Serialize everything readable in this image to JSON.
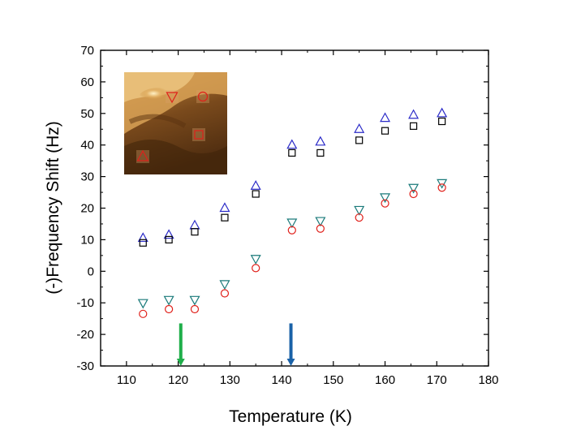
{
  "chart_data": {
    "type": "scatter",
    "title": "",
    "xlabel": "Temperature (K)",
    "ylabel": "(-)Frequency Shift (Hz)",
    "xlim": [
      105,
      180
    ],
    "ylim": [
      -30,
      70
    ],
    "x_ticks": [
      110,
      120,
      130,
      140,
      150,
      160,
      170,
      180
    ],
    "y_ticks": [
      -30,
      -20,
      -10,
      0,
      10,
      20,
      30,
      40,
      50,
      60,
      70
    ],
    "grid": false,
    "legend": "none",
    "series": [
      {
        "marker": "triangle-up",
        "color": "#2b2bc8",
        "x": [
          113.2,
          118.2,
          123.2,
          129.0,
          135.0,
          142.0,
          147.5,
          155.0,
          160.0,
          165.5,
          171.0
        ],
        "y": [
          10.5,
          11.5,
          14.5,
          20.0,
          27.0,
          40.0,
          41.0,
          45.0,
          48.5,
          49.5,
          50.0
        ]
      },
      {
        "marker": "square",
        "color": "#000000",
        "x": [
          113.2,
          118.2,
          123.2,
          129.0,
          135.0,
          142.0,
          147.5,
          155.0,
          160.0,
          165.5,
          171.0
        ],
        "y": [
          9.0,
          10.0,
          12.5,
          17.0,
          24.5,
          37.5,
          37.5,
          41.5,
          44.5,
          46.0,
          47.5
        ]
      },
      {
        "marker": "triangle-down",
        "color": "#1a7a7a",
        "x": [
          113.2,
          118.2,
          123.2,
          129.0,
          135.0,
          142.0,
          147.5,
          155.0,
          160.0,
          165.5,
          171.0
        ],
        "y": [
          -10.0,
          -9.0,
          -9.0,
          -4.0,
          4.0,
          15.5,
          16.0,
          19.5,
          23.5,
          26.5,
          28.0
        ]
      },
      {
        "marker": "circle",
        "color": "#e0201a",
        "x": [
          113.2,
          118.2,
          123.2,
          129.0,
          135.0,
          142.0,
          147.5,
          155.0,
          160.0,
          165.5,
          171.0
        ],
        "y": [
          -13.5,
          -12.0,
          -12.0,
          -7.0,
          1.0,
          13.0,
          13.5,
          17.0,
          21.5,
          24.5,
          26.5
        ]
      }
    ],
    "arrows": [
      {
        "x": 120.5,
        "color": "#1fae4a",
        "direction": "down"
      },
      {
        "x": 141.8,
        "color": "#1a62a8",
        "direction": "down"
      }
    ],
    "inset": {
      "type": "afm-topography-image",
      "markers": [
        "triangle-down",
        "circle",
        "square",
        "triangle-up"
      ],
      "marker_color": "#e0201a"
    }
  }
}
